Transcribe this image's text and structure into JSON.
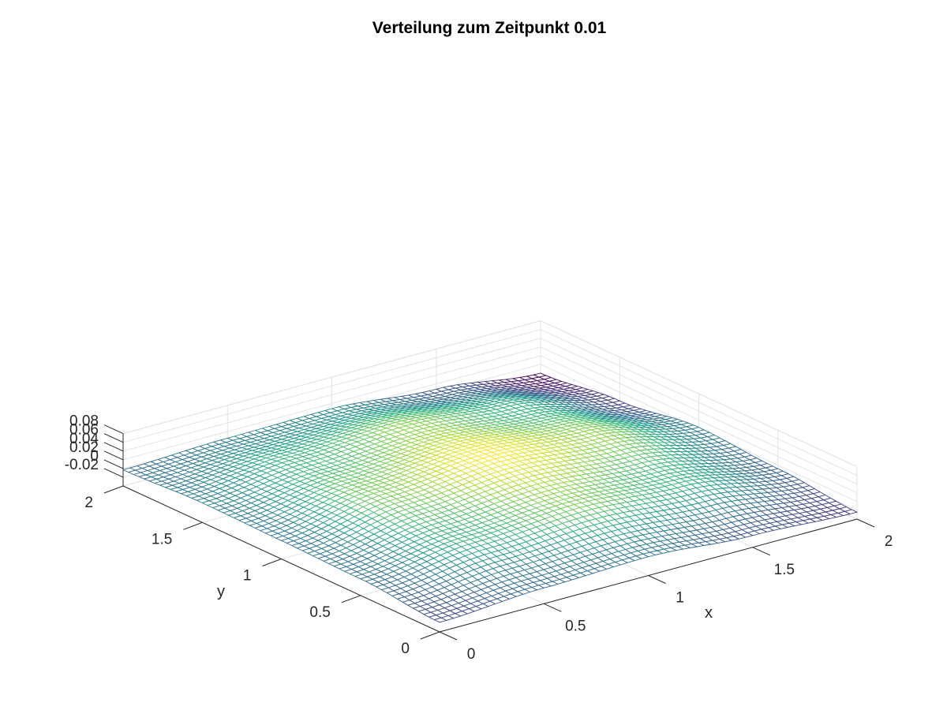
{
  "chart_data": {
    "type": "surface",
    "title": "Verteilung zum Zeitpunkt 0.01",
    "xlabel": "x",
    "ylabel": "y",
    "zlabel": "",
    "xlim": [
      0,
      2
    ],
    "ylim": [
      0,
      2
    ],
    "zlim": [
      -0.04,
      0.08
    ],
    "xticks": [
      "0",
      "0.5",
      "1",
      "1.5",
      "2"
    ],
    "yticks": [
      "0",
      "0.5",
      "1",
      "1.5",
      "2"
    ],
    "zticks": [
      "-0.02",
      "0",
      "0.02",
      "0.04",
      "0.06",
      "0.08"
    ],
    "grid": true,
    "colormap": "viridis",
    "mesh_resolution": 61,
    "surface_samples": {
      "x": [
        0,
        0.5,
        1,
        1.5,
        2
      ],
      "y": [
        0,
        0.5,
        1,
        1.5,
        2
      ],
      "z": [
        [
          -0.018,
          -0.002,
          0.002,
          0.005,
          -0.003
        ],
        [
          -0.004,
          0.03,
          0.045,
          0.032,
          0.005
        ],
        [
          0.003,
          0.045,
          0.066,
          0.047,
          0.008
        ],
        [
          -0.013,
          0.03,
          0.048,
          0.028,
          -0.012
        ],
        [
          -0.024,
          -0.008,
          0.003,
          -0.02,
          -0.04
        ]
      ]
    }
  }
}
